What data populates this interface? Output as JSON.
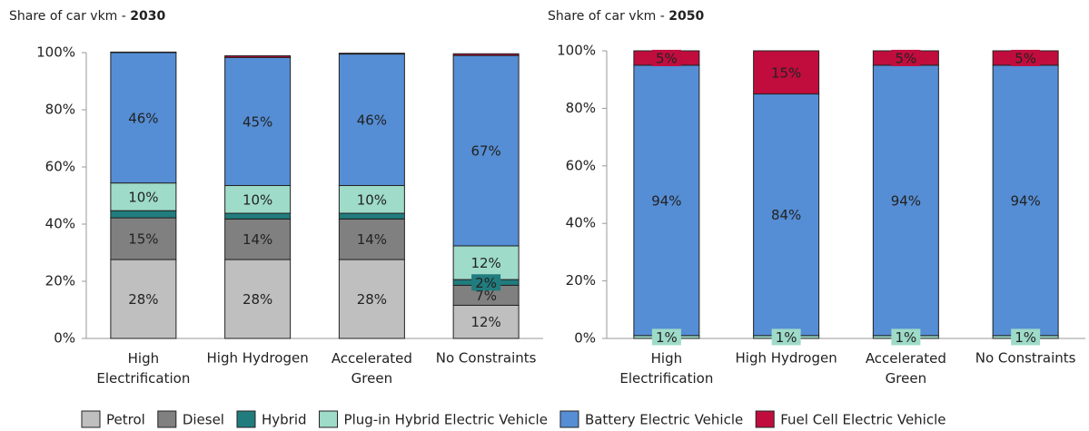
{
  "chart_data": [
    {
      "type": "stacked-bar",
      "title": "Share of car vkm - 2030",
      "categories": [
        "High Electrification",
        "High Hydrogen",
        "Accelerated Green",
        "No Constraints"
      ],
      "ylim": [
        0,
        100
      ],
      "yticks": [
        {
          "value": 0,
          "label": "0%"
        },
        {
          "value": 20,
          "label": "20%"
        },
        {
          "value": 40,
          "label": "40%"
        },
        {
          "value": 60,
          "label": "60%"
        },
        {
          "value": 80,
          "label": "80%"
        },
        {
          "value": 100,
          "label": "100%"
        }
      ],
      "series": [
        {
          "name": "Petrol",
          "color": "#bfbfbf",
          "label_color": "#222",
          "values": [
            27.6,
            27.6,
            27.6,
            11.6
          ],
          "value_labels": [
            "28%",
            "28%",
            "28%",
            "12%"
          ]
        },
        {
          "name": "Diesel",
          "color": "#808080",
          "label_color": "#fff",
          "values": [
            14.6,
            14.2,
            14.2,
            7
          ],
          "value_labels": [
            "15%",
            "14%",
            "14%",
            "7%"
          ]
        },
        {
          "name": "Hybrid",
          "color": "#217c7e",
          "label_color": "#fff",
          "values": [
            2.5,
            2,
            2,
            2
          ],
          "value_labels": [
            null,
            null,
            null,
            "2%"
          ]
        },
        {
          "name": "Plug-in Hybrid Electric Vehicle",
          "color": "#9edbc8",
          "label_color": "#fff",
          "values": [
            9.7,
            9.7,
            9.7,
            11.8
          ],
          "value_labels": [
            "10%",
            "10%",
            "10%",
            "12%"
          ]
        },
        {
          "name": "Battery Electric Vehicle",
          "color": "#558ed5",
          "label_color": "#fff",
          "values": [
            45.6,
            44.8,
            46,
            66.6
          ],
          "value_labels": [
            "46%",
            "45%",
            "46%",
            "67%"
          ]
        },
        {
          "name": "Fuel Cell Electric Vehicle",
          "color": "#c00d3d",
          "label_color": "#fff",
          "values": [
            0.2,
            0.6,
            0.3,
            0.6
          ],
          "value_labels": [
            null,
            null,
            null,
            null
          ]
        }
      ]
    },
    {
      "type": "stacked-bar",
      "title": "Share of car vkm - 2050",
      "categories": [
        "High Electrification",
        "High Hydrogen",
        "Accelerated Green",
        "No Constraints"
      ],
      "ylim": [
        0,
        100
      ],
      "yticks": [
        {
          "value": 0,
          "label": "0%"
        },
        {
          "value": 20,
          "label": "20%"
        },
        {
          "value": 40,
          "label": "40%"
        },
        {
          "value": 60,
          "label": "60%"
        },
        {
          "value": 80,
          "label": "80%"
        },
        {
          "value": 100,
          "label": "100%"
        }
      ],
      "series": [
        {
          "name": "Petrol",
          "color": "#bfbfbf",
          "label_color": "#222",
          "values": [
            0,
            0,
            0,
            0
          ],
          "value_labels": [
            null,
            null,
            null,
            null
          ]
        },
        {
          "name": "Diesel",
          "color": "#808080",
          "label_color": "#fff",
          "values": [
            0,
            0,
            0,
            0
          ],
          "value_labels": [
            null,
            null,
            null,
            null
          ]
        },
        {
          "name": "Hybrid",
          "color": "#217c7e",
          "label_color": "#fff",
          "values": [
            0,
            0,
            0,
            0
          ],
          "value_labels": [
            null,
            null,
            null,
            null
          ]
        },
        {
          "name": "Plug-in Hybrid Electric Vehicle",
          "color": "#9edbc8",
          "label_color": "#222",
          "values": [
            1,
            1,
            1,
            1
          ],
          "value_labels": [
            "1%",
            "1%",
            "1%",
            "1%"
          ]
        },
        {
          "name": "Battery Electric Vehicle",
          "color": "#558ed5",
          "label_color": "#fff",
          "values": [
            94,
            84,
            94,
            94
          ],
          "value_labels": [
            "94%",
            "84%",
            "94%",
            "94%"
          ]
        },
        {
          "name": "Fuel Cell Electric Vehicle",
          "color": "#c00d3d",
          "label_color": "#fff",
          "values": [
            5,
            15,
            5,
            5
          ],
          "value_labels": [
            "5%",
            "15%",
            "5%",
            "5%"
          ]
        }
      ]
    }
  ]
}
